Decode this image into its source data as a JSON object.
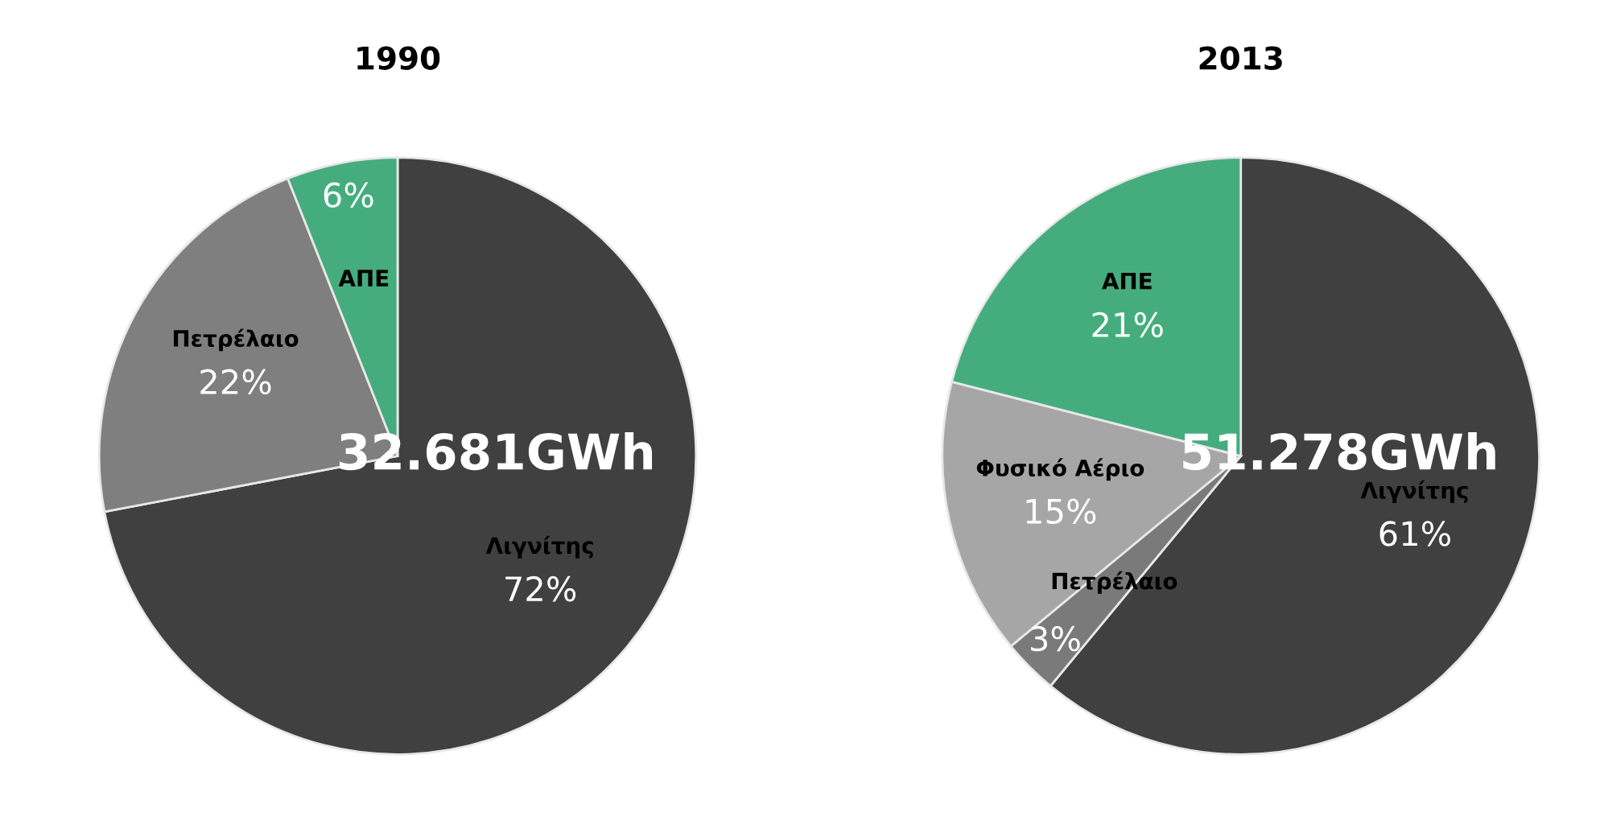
{
  "chart_data": [
    {
      "type": "pie",
      "title": "1990",
      "categories": [
        "Λιγνίτης",
        "Πετρέλαιο",
        "ΑΠΕ"
      ],
      "values": [
        72,
        22,
        6
      ],
      "colors": [
        "#404040",
        "#7f7f7f",
        "#45ad7d"
      ],
      "value_labels": [
        "72%",
        "22%",
        "6%"
      ],
      "annotations": [
        "32.681GWh"
      ]
    },
    {
      "type": "pie",
      "title": "2013",
      "categories": [
        "Λιγνίτης",
        "Πετρέλαιο",
        "Φυσικό Αέριο",
        "ΑΠΕ"
      ],
      "values": [
        61,
        3,
        15,
        21
      ],
      "colors": [
        "#404040",
        "#7a7a7a",
        "#a6a6a6",
        "#45ad7d"
      ],
      "value_labels": [
        "61%",
        "3%",
        "15%",
        "21%"
      ],
      "annotations": [
        "51.278GWh"
      ]
    }
  ]
}
